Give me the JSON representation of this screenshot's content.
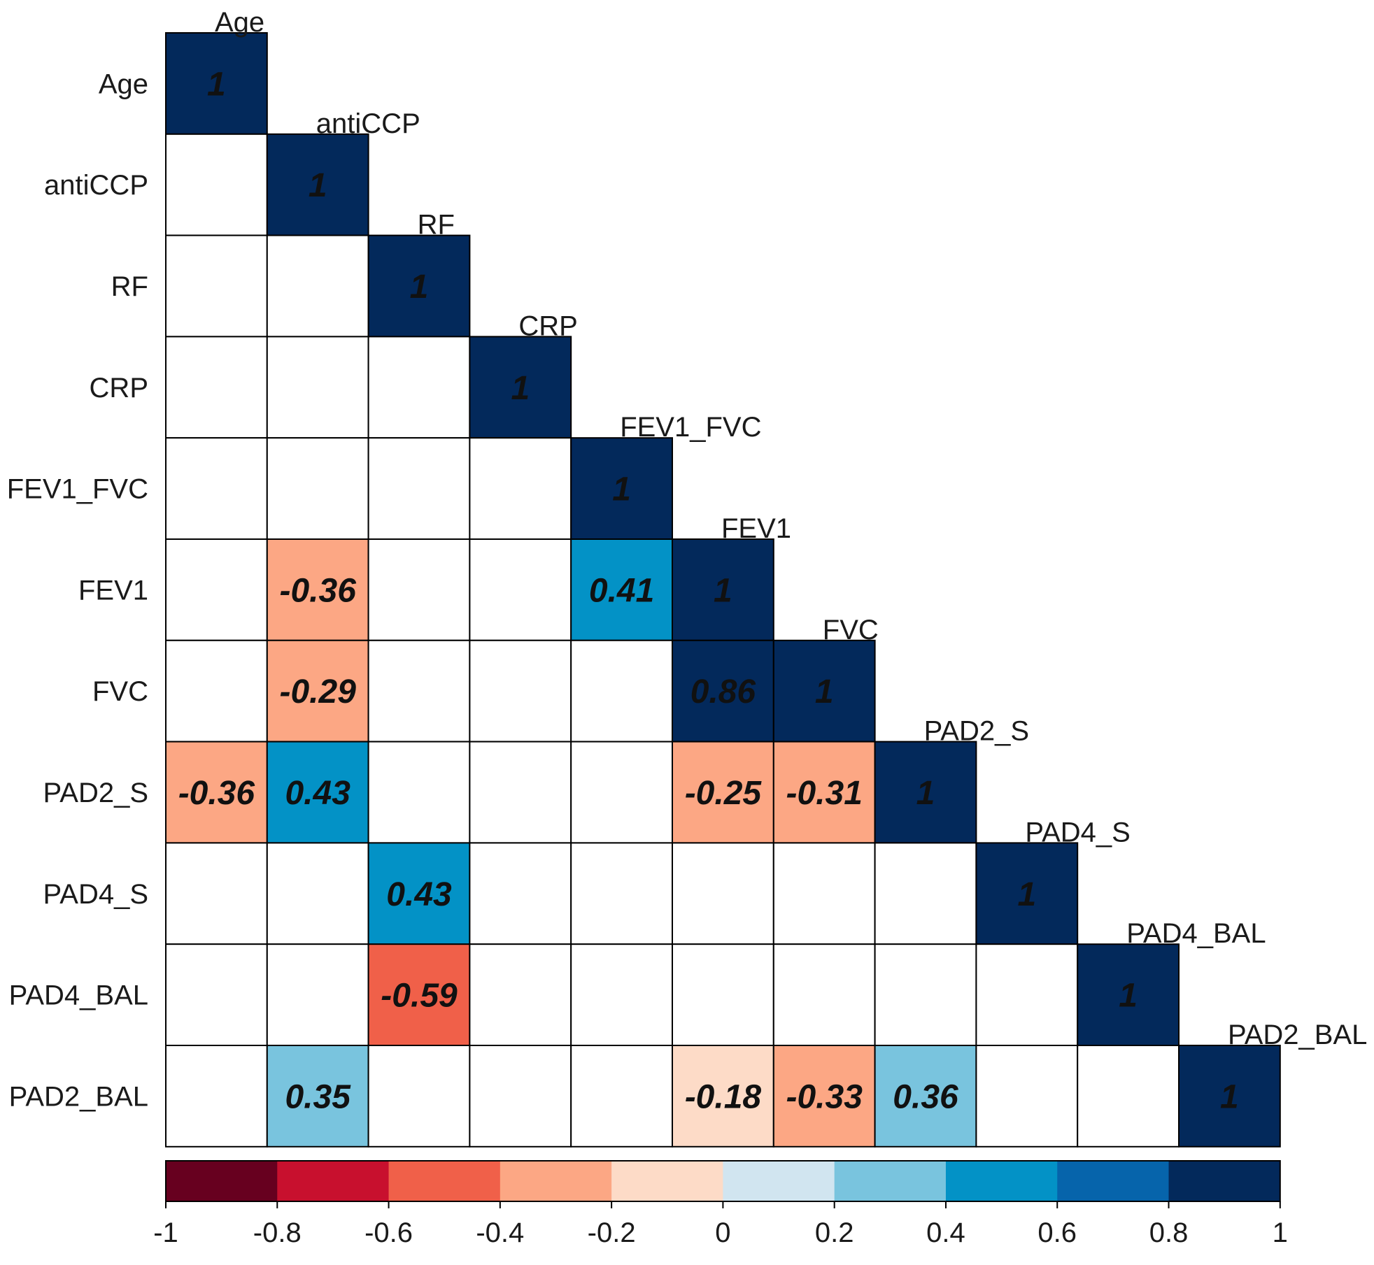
{
  "chart_data": {
    "type": "heatmap",
    "variables": [
      "Age",
      "antiCCP",
      "RF",
      "CRP",
      "FEV1_FVC",
      "FEV1",
      "FVC",
      "PAD2_S",
      "PAD4_S",
      "PAD4_BAL",
      "PAD2_BAL"
    ],
    "layout": "lower-triangle",
    "cells": [
      {
        "row": "Age",
        "col": "Age",
        "value": 1,
        "label": "1"
      },
      {
        "row": "antiCCP",
        "col": "antiCCP",
        "value": 1,
        "label": "1"
      },
      {
        "row": "RF",
        "col": "RF",
        "value": 1,
        "label": "1"
      },
      {
        "row": "CRP",
        "col": "CRP",
        "value": 1,
        "label": "1"
      },
      {
        "row": "FEV1_FVC",
        "col": "FEV1_FVC",
        "value": 1,
        "label": "1"
      },
      {
        "row": "FEV1",
        "col": "antiCCP",
        "value": -0.36,
        "label": "-0.36"
      },
      {
        "row": "FEV1",
        "col": "FEV1_FVC",
        "value": 0.41,
        "label": "0.41"
      },
      {
        "row": "FEV1",
        "col": "FEV1",
        "value": 1,
        "label": "1"
      },
      {
        "row": "FVC",
        "col": "antiCCP",
        "value": -0.29,
        "label": "-0.29"
      },
      {
        "row": "FVC",
        "col": "FEV1",
        "value": 0.86,
        "label": "0.86"
      },
      {
        "row": "FVC",
        "col": "FVC",
        "value": 1,
        "label": "1"
      },
      {
        "row": "PAD2_S",
        "col": "Age",
        "value": -0.36,
        "label": "-0.36"
      },
      {
        "row": "PAD2_S",
        "col": "antiCCP",
        "value": 0.43,
        "label": "0.43"
      },
      {
        "row": "PAD2_S",
        "col": "FEV1",
        "value": -0.25,
        "label": "-0.25"
      },
      {
        "row": "PAD2_S",
        "col": "FVC",
        "value": -0.31,
        "label": "-0.31"
      },
      {
        "row": "PAD2_S",
        "col": "PAD2_S",
        "value": 1,
        "label": "1"
      },
      {
        "row": "PAD4_S",
        "col": "RF",
        "value": 0.43,
        "label": "0.43"
      },
      {
        "row": "PAD4_S",
        "col": "PAD4_S",
        "value": 1,
        "label": "1"
      },
      {
        "row": "PAD4_BAL",
        "col": "RF",
        "value": -0.59,
        "label": "-0.59"
      },
      {
        "row": "PAD4_BAL",
        "col": "PAD4_BAL",
        "value": 1,
        "label": "1"
      },
      {
        "row": "PAD2_BAL",
        "col": "antiCCP",
        "value": 0.35,
        "label": "0.35"
      },
      {
        "row": "PAD2_BAL",
        "col": "FEV1",
        "value": -0.18,
        "label": "-0.18"
      },
      {
        "row": "PAD2_BAL",
        "col": "FVC",
        "value": -0.33,
        "label": "-0.33"
      },
      {
        "row": "PAD2_BAL",
        "col": "PAD2_S",
        "value": 0.36,
        "label": "0.36"
      },
      {
        "row": "PAD2_BAL",
        "col": "PAD2_BAL",
        "value": 1,
        "label": "1"
      }
    ],
    "colorbar": {
      "range": [
        -1,
        1
      ],
      "ticks": [
        "-1",
        "-0.8",
        "-0.6",
        "-0.4",
        "-0.2",
        "0",
        "0.2",
        "0.4",
        "0.6",
        "0.8",
        "1"
      ],
      "colors": [
        "#67001F",
        "#C8102E",
        "#F06049",
        "#FCA784",
        "#FDDBC7",
        "#D1E5F0",
        "#79C4DE",
        "#0392C6",
        "#0664AB",
        "#03295B"
      ]
    },
    "title": "",
    "xlabel": "",
    "ylabel": "",
    "grid": true
  }
}
